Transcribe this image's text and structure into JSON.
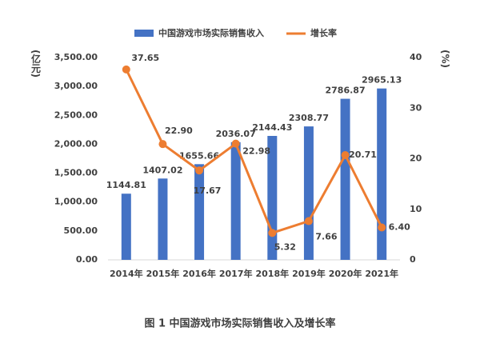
{
  "chart_data": {
    "type": "combo",
    "caption": "图 1 中国游戏市场实际销售收入及增长率",
    "y_label": "(亿元)",
    "y2_label": "(%)",
    "categories": [
      "2014年",
      "2015年",
      "2016年",
      "2017年",
      "2018年",
      "2019年",
      "2020年",
      "2021年"
    ],
    "series": [
      {
        "name": "中国游戏市场实际销售收入",
        "type": "bar",
        "color": "#4472c4",
        "values": [
          1144.81,
          1407.02,
          1655.66,
          2036.07,
          2144.43,
          2308.77,
          2786.87,
          2965.13
        ]
      },
      {
        "name": "增长率",
        "type": "line",
        "axis": "y2",
        "color": "#ed7d31",
        "values": [
          37.65,
          22.9,
          17.67,
          22.98,
          5.32,
          7.66,
          20.71,
          6.4
        ],
        "value_labels": [
          "37.65",
          "22.90",
          "17.67",
          "22.98",
          "5.32",
          "7.66",
          "20.71",
          "6.40"
        ]
      }
    ],
    "ylim": [
      0,
      3500
    ],
    "yticks": [
      {
        "value": 0,
        "label": "0.00"
      },
      {
        "value": 500,
        "label": "500.00"
      },
      {
        "value": 1000,
        "label": "1,000.00"
      },
      {
        "value": 1500,
        "label": "1,500.00"
      },
      {
        "value": 2000,
        "label": "2,000.00"
      },
      {
        "value": 2500,
        "label": "2,500.00"
      },
      {
        "value": 3000,
        "label": "3,000.00"
      },
      {
        "value": 3500,
        "label": "3,500.00"
      }
    ],
    "y2lim": [
      0,
      40
    ],
    "y2ticks": [
      0,
      10,
      20,
      30,
      40
    ],
    "legend": "top"
  }
}
